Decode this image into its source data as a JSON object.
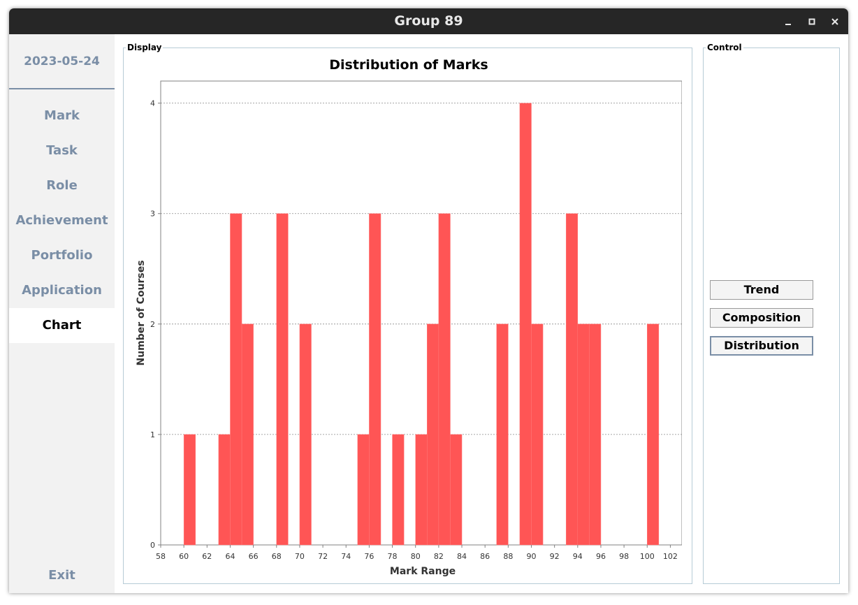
{
  "window": {
    "title": "Group 89"
  },
  "sidebar": {
    "date": "2023-05-24",
    "items": [
      {
        "label": "Mark",
        "active": false
      },
      {
        "label": "Task",
        "active": false
      },
      {
        "label": "Role",
        "active": false
      },
      {
        "label": "Achievement",
        "active": false
      },
      {
        "label": "Portfolio",
        "active": false
      },
      {
        "label": "Application",
        "active": false
      },
      {
        "label": "Chart",
        "active": true
      }
    ],
    "exit": "Exit"
  },
  "display": {
    "legend": "Display"
  },
  "control": {
    "legend": "Control",
    "buttons": [
      {
        "label": "Trend",
        "selected": false
      },
      {
        "label": "Composition",
        "selected": false
      },
      {
        "label": "Distribution",
        "selected": true
      }
    ]
  },
  "chart_data": {
    "type": "bar",
    "title": "Distribution of Marks",
    "xlabel": "Mark Range",
    "ylabel": "Number of Courses",
    "xlim": [
      58,
      103
    ],
    "ylim": [
      0,
      4.2
    ],
    "xticks": [
      58,
      60,
      62,
      64,
      66,
      68,
      70,
      72,
      74,
      76,
      78,
      80,
      82,
      84,
      86,
      88,
      90,
      92,
      94,
      96,
      98,
      100,
      102
    ],
    "yticks": [
      0,
      1,
      2,
      3,
      4
    ],
    "grid": "horizontal dotted",
    "bar_color": "#ff5555",
    "bins": [
      {
        "start": 60,
        "end": 61,
        "value": 1
      },
      {
        "start": 63,
        "end": 64,
        "value": 1
      },
      {
        "start": 64,
        "end": 65,
        "value": 3
      },
      {
        "start": 65,
        "end": 66,
        "value": 2
      },
      {
        "start": 68,
        "end": 69,
        "value": 3
      },
      {
        "start": 70,
        "end": 71,
        "value": 2
      },
      {
        "start": 75,
        "end": 76,
        "value": 1
      },
      {
        "start": 76,
        "end": 77,
        "value": 3
      },
      {
        "start": 78,
        "end": 79,
        "value": 1
      },
      {
        "start": 80,
        "end": 81,
        "value": 1
      },
      {
        "start": 81,
        "end": 82,
        "value": 2
      },
      {
        "start": 82,
        "end": 83,
        "value": 3
      },
      {
        "start": 83,
        "end": 84,
        "value": 1
      },
      {
        "start": 87,
        "end": 88,
        "value": 2
      },
      {
        "start": 89,
        "end": 90,
        "value": 4
      },
      {
        "start": 90,
        "end": 91,
        "value": 2
      },
      {
        "start": 93,
        "end": 94,
        "value": 3
      },
      {
        "start": 94,
        "end": 95,
        "value": 2
      },
      {
        "start": 95,
        "end": 96,
        "value": 2
      },
      {
        "start": 100,
        "end": 101,
        "value": 2
      }
    ]
  }
}
